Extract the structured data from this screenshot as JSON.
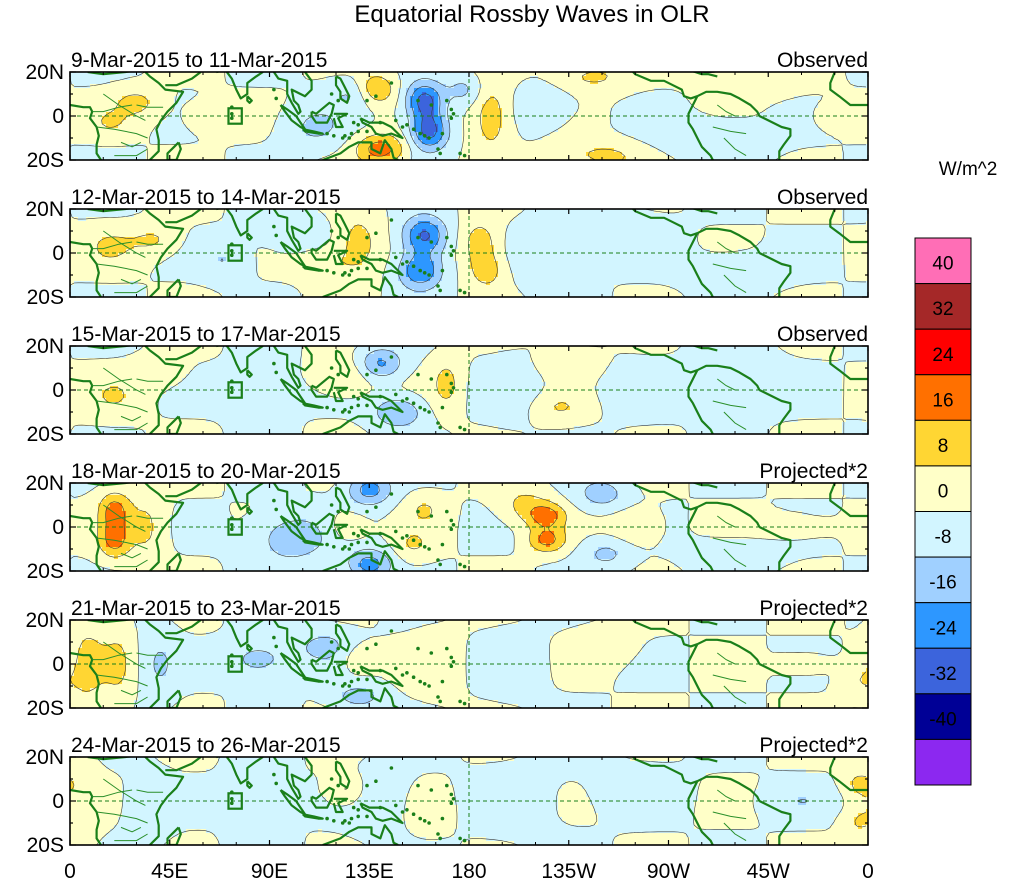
{
  "chart_data": {
    "type": "heatmap",
    "title": "Equatorial Rossby Waves in OLR",
    "units": "W/m^2",
    "x_tick_labels": [
      "0",
      "45E",
      "90E",
      "135E",
      "180",
      "135W",
      "90W",
      "45W",
      "0"
    ],
    "x_tick_lons": [
      0,
      45,
      90,
      135,
      180,
      225,
      270,
      315,
      360
    ],
    "y_tick_labels": [
      "20N",
      "0",
      "20S"
    ],
    "y_tick_lats": [
      20,
      0,
      -20
    ],
    "xlim": [
      0,
      360
    ],
    "ylim": [
      -20,
      20
    ],
    "reference_lines": {
      "equator_lat": 0,
      "dateline_lon": 180
    },
    "legend": {
      "placement": "right",
      "levels": [
        "40",
        "32",
        "24",
        "16",
        "8",
        "0",
        "-8",
        "-16",
        "-24",
        "-32",
        "-40"
      ],
      "colors": [
        "#ff6eb6",
        "#a52828",
        "#ff0000",
        "#ff7000",
        "#ffd633",
        "#ffffc8",
        "#d2f5ff",
        "#a0d0ff",
        "#2d97ff",
        "#3c64dc",
        "#000096",
        "#8c28f0"
      ]
    },
    "panels": [
      {
        "period": "9-Mar-2015 to 11-Mar-2015",
        "status": "Observed",
        "blobs": [
          {
            "lon": 30,
            "lat": 6,
            "v": 10,
            "sx": 8,
            "sy": 5
          },
          {
            "lon": 18,
            "lat": -3,
            "v": 7,
            "sx": 6,
            "sy": 4
          },
          {
            "lon": 62,
            "lat": 0,
            "v": 6,
            "sx": 8,
            "sy": 5
          },
          {
            "lon": 110,
            "lat": -5,
            "v": -9,
            "sx": 10,
            "sy": 7
          },
          {
            "lon": 128,
            "lat": 10,
            "v": -9,
            "sx": 8,
            "sy": 5
          },
          {
            "lon": 138,
            "lat": 12,
            "v": 18,
            "sx": 6,
            "sy": 5
          },
          {
            "lon": 140,
            "lat": -15,
            "v": 20,
            "sx": 8,
            "sy": 5
          },
          {
            "lon": 160,
            "lat": 7,
            "v": -28,
            "sx": 6,
            "sy": 6
          },
          {
            "lon": 162,
            "lat": -7,
            "v": -28,
            "sx": 6,
            "sy": 6
          },
          {
            "lon": 178,
            "lat": 12,
            "v": -10,
            "sx": 6,
            "sy": 5
          },
          {
            "lon": 190,
            "lat": 0,
            "v": 14,
            "sx": 6,
            "sy": 11
          },
          {
            "lon": 215,
            "lat": 5,
            "v": -6,
            "sx": 10,
            "sy": 7
          },
          {
            "lon": 235,
            "lat": 18,
            "v": 10,
            "sx": 12,
            "sy": 5
          },
          {
            "lon": 240,
            "lat": -18,
            "v": 10,
            "sx": 14,
            "sy": 5
          },
          {
            "lon": 290,
            "lat": -10,
            "v": -8,
            "sx": 18,
            "sy": 6
          },
          {
            "lon": 345,
            "lat": 0,
            "v": 8,
            "sx": 6,
            "sy": 4
          },
          {
            "lon": 310,
            "lat": 15,
            "v": 5,
            "sx": 15,
            "sy": 5
          }
        ]
      },
      {
        "period": "12-Mar-2015 to 14-Mar-2015",
        "status": "Observed",
        "blobs": [
          {
            "lon": 18,
            "lat": 3,
            "v": 8,
            "sx": 8,
            "sy": 6
          },
          {
            "lon": 38,
            "lat": 6,
            "v": 9,
            "sx": 8,
            "sy": 5
          },
          {
            "lon": 70,
            "lat": -3,
            "v": -8,
            "sx": 8,
            "sy": 6
          },
          {
            "lon": 100,
            "lat": 10,
            "v": -8,
            "sx": 10,
            "sy": 6
          },
          {
            "lon": 115,
            "lat": -5,
            "v": 8,
            "sx": 8,
            "sy": 5
          },
          {
            "lon": 130,
            "lat": 4,
            "v": 12,
            "sx": 7,
            "sy": 10
          },
          {
            "lon": 160,
            "lat": 8,
            "v": -26,
            "sx": 7,
            "sy": 6
          },
          {
            "lon": 158,
            "lat": -8,
            "v": -24,
            "sx": 7,
            "sy": 6
          },
          {
            "lon": 185,
            "lat": 5,
            "v": 13,
            "sx": 6,
            "sy": 7
          },
          {
            "lon": 188,
            "lat": -8,
            "v": 12,
            "sx": 6,
            "sy": 6
          },
          {
            "lon": 215,
            "lat": 0,
            "v": -7,
            "sx": 10,
            "sy": 10
          },
          {
            "lon": 250,
            "lat": 8,
            "v": -6,
            "sx": 14,
            "sy": 8
          },
          {
            "lon": 300,
            "lat": -8,
            "v": -6,
            "sx": 15,
            "sy": 6
          }
        ]
      },
      {
        "period": "15-Mar-2015 to 17-Mar-2015",
        "status": "Observed",
        "blobs": [
          {
            "lon": 20,
            "lat": -3,
            "v": 7,
            "sx": 9,
            "sy": 7
          },
          {
            "lon": 40,
            "lat": 8,
            "v": 6,
            "sx": 8,
            "sy": 5
          },
          {
            "lon": 85,
            "lat": 0,
            "v": -6,
            "sx": 10,
            "sy": 8
          },
          {
            "lon": 125,
            "lat": 6,
            "v": 8,
            "sx": 9,
            "sy": 6
          },
          {
            "lon": 140,
            "lat": 12,
            "v": -18,
            "sx": 7,
            "sy": 5
          },
          {
            "lon": 148,
            "lat": -10,
            "v": -16,
            "sx": 8,
            "sy": 5
          },
          {
            "lon": 170,
            "lat": 3,
            "v": 10,
            "sx": 5,
            "sy": 9
          },
          {
            "lon": 200,
            "lat": 0,
            "v": -6,
            "sx": 10,
            "sy": 10
          },
          {
            "lon": 225,
            "lat": 12,
            "v": 7,
            "sx": 10,
            "sy": 5
          },
          {
            "lon": 220,
            "lat": -8,
            "v": 8,
            "sx": 10,
            "sy": 5
          },
          {
            "lon": 255,
            "lat": 0,
            "v": -6,
            "sx": 12,
            "sy": 8
          },
          {
            "lon": 300,
            "lat": 5,
            "v": -5,
            "sx": 15,
            "sy": 10
          }
        ]
      },
      {
        "period": "18-Mar-2015 to 20-Mar-2015",
        "status": "Projected*2",
        "blobs": [
          {
            "lon": 20,
            "lat": 8,
            "v": 18,
            "sx": 5,
            "sy": 6
          },
          {
            "lon": 20,
            "lat": -6,
            "v": 18,
            "sx": 5,
            "sy": 6
          },
          {
            "lon": 35,
            "lat": 0,
            "v": 9,
            "sx": 6,
            "sy": 12
          },
          {
            "lon": 100,
            "lat": -5,
            "v": -14,
            "sx": 12,
            "sy": 8
          },
          {
            "lon": 135,
            "lat": 17,
            "v": -20,
            "sx": 7,
            "sy": 5
          },
          {
            "lon": 135,
            "lat": -17,
            "v": -20,
            "sx": 7,
            "sy": 5
          },
          {
            "lon": 125,
            "lat": 0,
            "v": 8,
            "sx": 6,
            "sy": 5
          },
          {
            "lon": 160,
            "lat": 8,
            "v": 8,
            "sx": 6,
            "sy": 5
          },
          {
            "lon": 155,
            "lat": -8,
            "v": 8,
            "sx": 6,
            "sy": 5
          },
          {
            "lon": 205,
            "lat": 10,
            "v": 10,
            "sx": 8,
            "sy": 6
          },
          {
            "lon": 215,
            "lat": 5,
            "v": 18,
            "sx": 6,
            "sy": 4
          },
          {
            "lon": 215,
            "lat": -6,
            "v": 18,
            "sx": 6,
            "sy": 4
          },
          {
            "lon": 240,
            "lat": 15,
            "v": -12,
            "sx": 8,
            "sy": 5
          },
          {
            "lon": 242,
            "lat": -12,
            "v": -10,
            "sx": 8,
            "sy": 5
          },
          {
            "lon": 255,
            "lat": 0,
            "v": 8,
            "sx": 8,
            "sy": 6
          },
          {
            "lon": 325,
            "lat": 0,
            "v": 6,
            "sx": 12,
            "sy": 4
          },
          {
            "lon": 300,
            "lat": -12,
            "v": -6,
            "sx": 14,
            "sy": 5
          }
        ]
      },
      {
        "period": "21-Mar-2015 to 23-Mar-2015",
        "status": "Projected*2",
        "blobs": [
          {
            "lon": 8,
            "lat": 0,
            "v": 10,
            "sx": 6,
            "sy": 16
          },
          {
            "lon": 22,
            "lat": 0,
            "v": 8,
            "sx": 5,
            "sy": 14
          },
          {
            "lon": 40,
            "lat": 0,
            "v": -8,
            "sx": 6,
            "sy": 12
          },
          {
            "lon": 85,
            "lat": 2,
            "v": -12,
            "sx": 10,
            "sy": 6
          },
          {
            "lon": 115,
            "lat": 8,
            "v": -10,
            "sx": 10,
            "sy": 6
          },
          {
            "lon": 130,
            "lat": -15,
            "v": -12,
            "sx": 8,
            "sy": 4
          },
          {
            "lon": 130,
            "lat": 3,
            "v": 8,
            "sx": 6,
            "sy": 5
          },
          {
            "lon": 165,
            "lat": 0,
            "v": 6,
            "sx": 8,
            "sy": 10
          },
          {
            "lon": 200,
            "lat": 0,
            "v": -6,
            "sx": 10,
            "sy": 10
          },
          {
            "lon": 240,
            "lat": 8,
            "v": 7,
            "sx": 10,
            "sy": 6
          },
          {
            "lon": 330,
            "lat": 0,
            "v": 8,
            "sx": 8,
            "sy": 3
          },
          {
            "lon": 355,
            "lat": -8,
            "v": 6,
            "sx": 6,
            "sy": 5
          }
        ]
      },
      {
        "period": "24-Mar-2015 to 26-Mar-2015",
        "status": "Projected*2",
        "blobs": [
          {
            "lon": 5,
            "lat": 0,
            "v": 6,
            "sx": 6,
            "sy": 16
          },
          {
            "lon": 35,
            "lat": -3,
            "v": -7,
            "sx": 7,
            "sy": 10
          },
          {
            "lon": 85,
            "lat": 0,
            "v": -10,
            "sx": 8,
            "sy": 14
          },
          {
            "lon": 125,
            "lat": 5,
            "v": 12,
            "sx": 6,
            "sy": 5
          },
          {
            "lon": 140,
            "lat": 0,
            "v": -8,
            "sx": 10,
            "sy": 10
          },
          {
            "lon": 160,
            "lat": -5,
            "v": 6,
            "sx": 7,
            "sy": 7
          },
          {
            "lon": 200,
            "lat": 0,
            "v": -4,
            "sx": 14,
            "sy": 12
          },
          {
            "lon": 255,
            "lat": 5,
            "v": -5,
            "sx": 14,
            "sy": 8
          },
          {
            "lon": 330,
            "lat": 0,
            "v": -6,
            "sx": 12,
            "sy": 5
          },
          {
            "lon": 355,
            "lat": 8,
            "v": 8,
            "sx": 5,
            "sy": 5
          },
          {
            "lon": 355,
            "lat": -10,
            "v": 7,
            "sx": 5,
            "sy": 5
          }
        ]
      }
    ]
  }
}
